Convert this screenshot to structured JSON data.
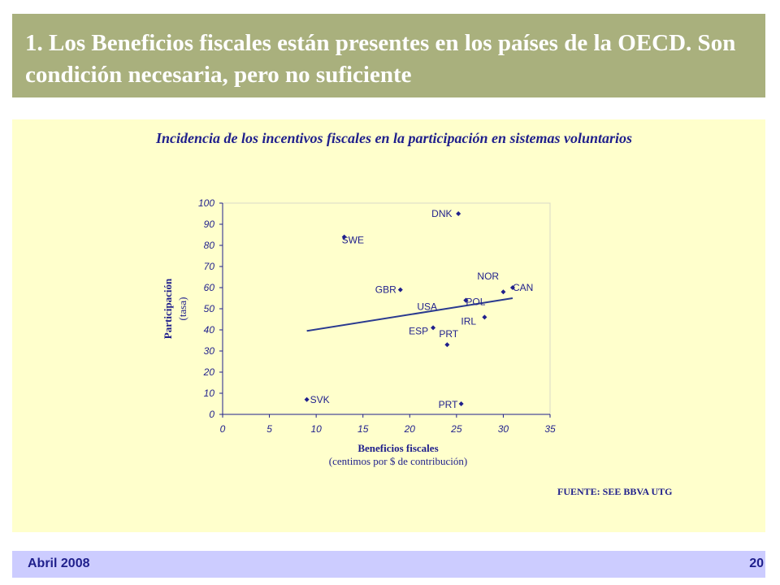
{
  "header": {
    "title": "1. Los Beneficios fiscales están presentes en los países de la OECD. Son condición necesaria, pero no suficiente",
    "bg_color": "#a9b07d"
  },
  "panel": {
    "bg_color": "#ffffcc",
    "source": "FUENTE: SEE BBVA UTG"
  },
  "footer": {
    "date": "Abril 2008",
    "page": "20",
    "bg_color": "#ccccff"
  },
  "chart_data": {
    "type": "scatter",
    "title": "Incidencia de los incentivos fiscales en la participación en sistemas voluntarios",
    "xlabel": "Beneficios fiscales",
    "xlabel_sub": "(centimos por $ de contribución)",
    "ylabel": "Participación",
    "ylabel_sub": "(tasa)",
    "xlim": [
      0,
      35
    ],
    "ylim": [
      0,
      100
    ],
    "x_ticks": [
      "0",
      "5",
      "10",
      "15",
      "20",
      "25",
      "30",
      "35"
    ],
    "y_ticks": [
      "0",
      "10",
      "20",
      "30",
      "40",
      "50",
      "60",
      "70",
      "80",
      "90",
      "100"
    ],
    "points": [
      {
        "label": "DNK",
        "x": 25.2,
        "y": 95
      },
      {
        "label": "SWE",
        "x": 13.0,
        "y": 84
      },
      {
        "label": "GBR",
        "x": 19.0,
        "y": 59
      },
      {
        "label": "NOR",
        "x": 30.0,
        "y": 58
      },
      {
        "label": "CAN",
        "x": 31.0,
        "y": 60
      },
      {
        "label": "POL",
        "x": 26.0,
        "y": 54
      },
      {
        "label": "USA",
        "x": 26.0,
        "y": 54
      },
      {
        "label": "IRL",
        "x": 28.0,
        "y": 46
      },
      {
        "label": "ESP",
        "x": 22.5,
        "y": 41
      },
      {
        "label": "PRT",
        "x": 24.0,
        "y": 33
      },
      {
        "label": "SVK",
        "x": 9.0,
        "y": 7
      },
      {
        "label": "PRT",
        "x": 25.5,
        "y": 5
      }
    ],
    "trendline": {
      "x": [
        9,
        31
      ],
      "y": [
        39.5,
        55
      ]
    },
    "grid": false,
    "colors": {
      "marker": "#1f1f8c",
      "trend": "#2a3a8f",
      "text": "#1f1f8c"
    }
  }
}
